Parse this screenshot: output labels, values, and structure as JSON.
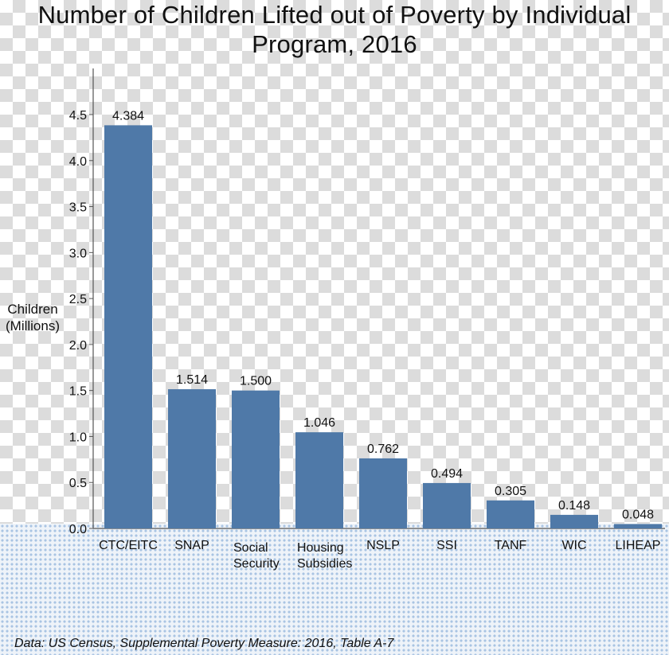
{
  "chart_data": {
    "type": "bar",
    "title_lines": [
      "Number of Children Lifted out of Poverty by Individual",
      "Program, 2016"
    ],
    "ylabel_lines": [
      "Children",
      "(Millions)"
    ],
    "xlabel": "",
    "categories": [
      [
        "CTC/EITC"
      ],
      [
        "SNAP"
      ],
      [
        "Social",
        "Security"
      ],
      [
        "Housing",
        "Subsidies"
      ],
      [
        "NSLP"
      ],
      [
        "SSI"
      ],
      [
        "TANF"
      ],
      [
        "WIC"
      ],
      [
        "LIHEAP"
      ]
    ],
    "values": [
      4.384,
      1.514,
      1.5,
      1.046,
      0.762,
      0.494,
      0.305,
      0.148,
      0.048
    ],
    "data_labels": [
      "4.384",
      "1.514",
      "1.500",
      "1.046",
      "0.762",
      "0.494",
      "0.305",
      "0.148",
      "0.048"
    ],
    "yticks": [
      "0.0",
      "0.5",
      "1.0",
      "1.5",
      "2.0",
      "2.5",
      "3.0",
      "3.5",
      "4.0",
      "4.5"
    ],
    "ylim": [
      0,
      4.5
    ],
    "bar_color": "#4f79a8",
    "grid": false,
    "source": "Data: US Census, Supplemental Poverty Measure: 2016, Table A-7"
  }
}
